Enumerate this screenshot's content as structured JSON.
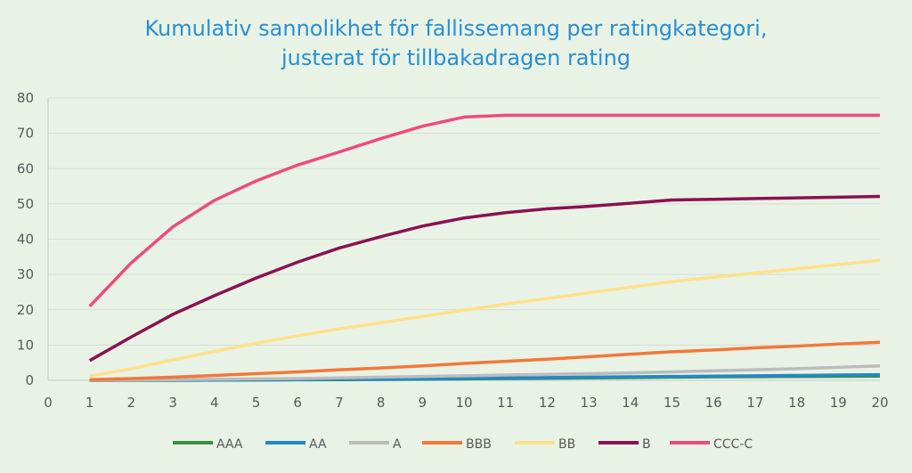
{
  "chart_data": {
    "type": "line",
    "title": "Kumulativ sannolikhet för fallissemang per ratingkategori, justerat för tillbakadragen rating",
    "title_lines": [
      "Kumulativ sannolikhet för fallissemang per ratingkategori,",
      "justerat för tillbakadragen rating"
    ],
    "xlabel": "",
    "ylabel": "",
    "x": [
      1,
      2,
      3,
      4,
      5,
      6,
      7,
      8,
      9,
      10,
      11,
      12,
      13,
      14,
      15,
      16,
      17,
      18,
      19,
      20
    ],
    "xticks": [
      0,
      1,
      2,
      3,
      4,
      5,
      6,
      7,
      8,
      9,
      10,
      11,
      12,
      13,
      14,
      15,
      16,
      17,
      18,
      19,
      20
    ],
    "yticks": [
      0,
      10,
      20,
      30,
      40,
      50,
      60,
      70,
      80
    ],
    "xlim": [
      0,
      20
    ],
    "ylim": [
      0,
      80
    ],
    "grid": "horizontal",
    "legend_position": "bottom",
    "series": [
      {
        "name": "AAA",
        "color": "#3a8f45",
        "values": [
          0,
          0,
          0,
          0.05,
          0.1,
          0.15,
          0.2,
          0.25,
          0.3,
          0.4,
          0.5,
          0.6,
          0.7,
          0.8,
          0.9,
          1.0,
          1.05,
          1.1,
          1.15,
          1.2
        ]
      },
      {
        "name": "AA",
        "color": "#2388c8",
        "values": [
          0,
          0.02,
          0.05,
          0.1,
          0.15,
          0.2,
          0.3,
          0.35,
          0.45,
          0.6,
          0.7,
          0.8,
          0.9,
          1.0,
          1.1,
          1.2,
          1.3,
          1.4,
          1.5,
          1.6
        ]
      },
      {
        "name": "A",
        "color": "#bcbcbc",
        "values": [
          0.05,
          0.1,
          0.2,
          0.3,
          0.4,
          0.5,
          0.7,
          0.9,
          1.1,
          1.3,
          1.5,
          1.7,
          1.9,
          2.1,
          2.4,
          2.7,
          3.0,
          3.3,
          3.7,
          4.1
        ]
      },
      {
        "name": "BBB",
        "color": "#f47738",
        "values": [
          0.2,
          0.5,
          0.9,
          1.4,
          1.9,
          2.4,
          3.0,
          3.5,
          4.1,
          4.8,
          5.4,
          6.0,
          6.7,
          7.4,
          8.1,
          8.6,
          9.2,
          9.7,
          10.3,
          10.8
        ]
      },
      {
        "name": "BB",
        "color": "#fde28a",
        "values": [
          1.2,
          3.3,
          5.8,
          8.2,
          10.5,
          12.6,
          14.6,
          16.3,
          18.1,
          19.9,
          21.6,
          23.2,
          24.8,
          26.4,
          28.0,
          29.2,
          30.4,
          31.6,
          32.8,
          34.0
        ]
      },
      {
        "name": "B",
        "color": "#8b1152",
        "values": [
          5.6,
          12.3,
          18.7,
          24.0,
          29.0,
          33.5,
          37.5,
          40.7,
          43.7,
          46.0,
          47.5,
          48.6,
          49.3,
          50.2,
          51.1,
          51.3,
          51.5,
          51.7,
          51.9,
          52.1
        ]
      },
      {
        "name": "CCC-C",
        "color": "#ef4a7e",
        "values": [
          21.0,
          33.3,
          43.5,
          51.0,
          56.5,
          61.0,
          64.7,
          68.5,
          72.0,
          74.6,
          75.1,
          75.1,
          75.1,
          75.1,
          75.1,
          75.1,
          75.1,
          75.1,
          75.1,
          75.1
        ]
      }
    ]
  }
}
